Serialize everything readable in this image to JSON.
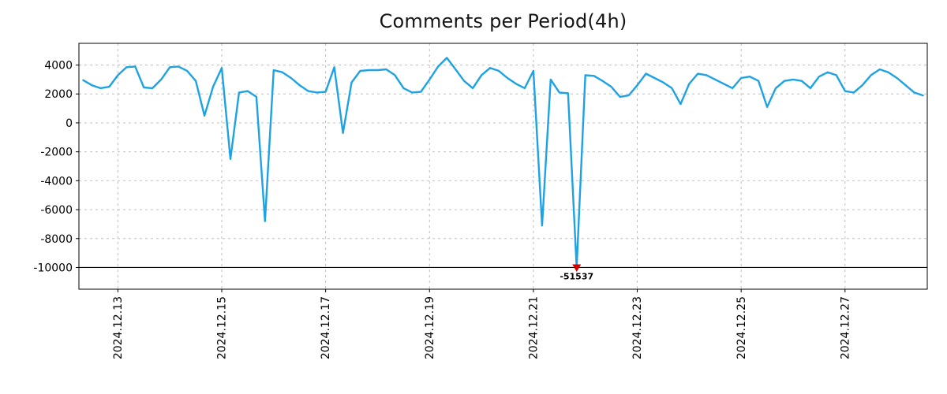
{
  "chart_data": {
    "type": "line",
    "title": "Comments per Period(4h)",
    "line_color": "#1da2e3",
    "grid": true,
    "x_tick_labels": [
      "2024.12.13",
      "2024.12.15",
      "2024.12.17",
      "2024.12.19",
      "2024.12.21",
      "2024.12.23",
      "2024.12.25",
      "2024.12.27"
    ],
    "x_tick_indices": [
      4,
      16,
      28,
      40,
      52,
      64,
      76,
      88
    ],
    "y_ticks": [
      4000,
      2000,
      0,
      -2000,
      -4000,
      -6000,
      -8000,
      -10000
    ],
    "ylim": [
      -11500,
      5500
    ],
    "clip_line_y": -10000,
    "values": [
      2950,
      2600,
      2400,
      2500,
      3300,
      3850,
      3900,
      2450,
      2400,
      3000,
      3850,
      3900,
      3600,
      2900,
      500,
      2500,
      3800,
      -2500,
      2100,
      2200,
      1800,
      -6800,
      3650,
      3500,
      3100,
      2600,
      2200,
      2100,
      2150,
      3850,
      -700,
      2800,
      3600,
      3650,
      3650,
      3700,
      3300,
      2400,
      2100,
      2150,
      3000,
      3900,
      4500,
      3700,
      2900,
      2400,
      3300,
      3800,
      3600,
      3100,
      2700,
      2400,
      3600,
      -7100,
      3000,
      2100,
      2050,
      -51537,
      3300,
      3250,
      2900,
      2500,
      1800,
      1900,
      2600,
      3400,
      3100,
      2800,
      2400,
      1300,
      2700,
      3400,
      3300,
      3000,
      2700,
      2400,
      3100,
      3200,
      2900,
      1100,
      2400,
      2900,
      3000,
      2900,
      2400,
      3200,
      3500,
      3300,
      2200,
      2100,
      2600,
      3300,
      3700,
      3500,
      3100,
      2600,
      2100,
      1900
    ],
    "min_annotation": {
      "index": 57,
      "value": -51537,
      "label": "-51537",
      "marker": "triangle-down",
      "marker_color": "#d40000",
      "text_color": "#1da2e3"
    }
  }
}
